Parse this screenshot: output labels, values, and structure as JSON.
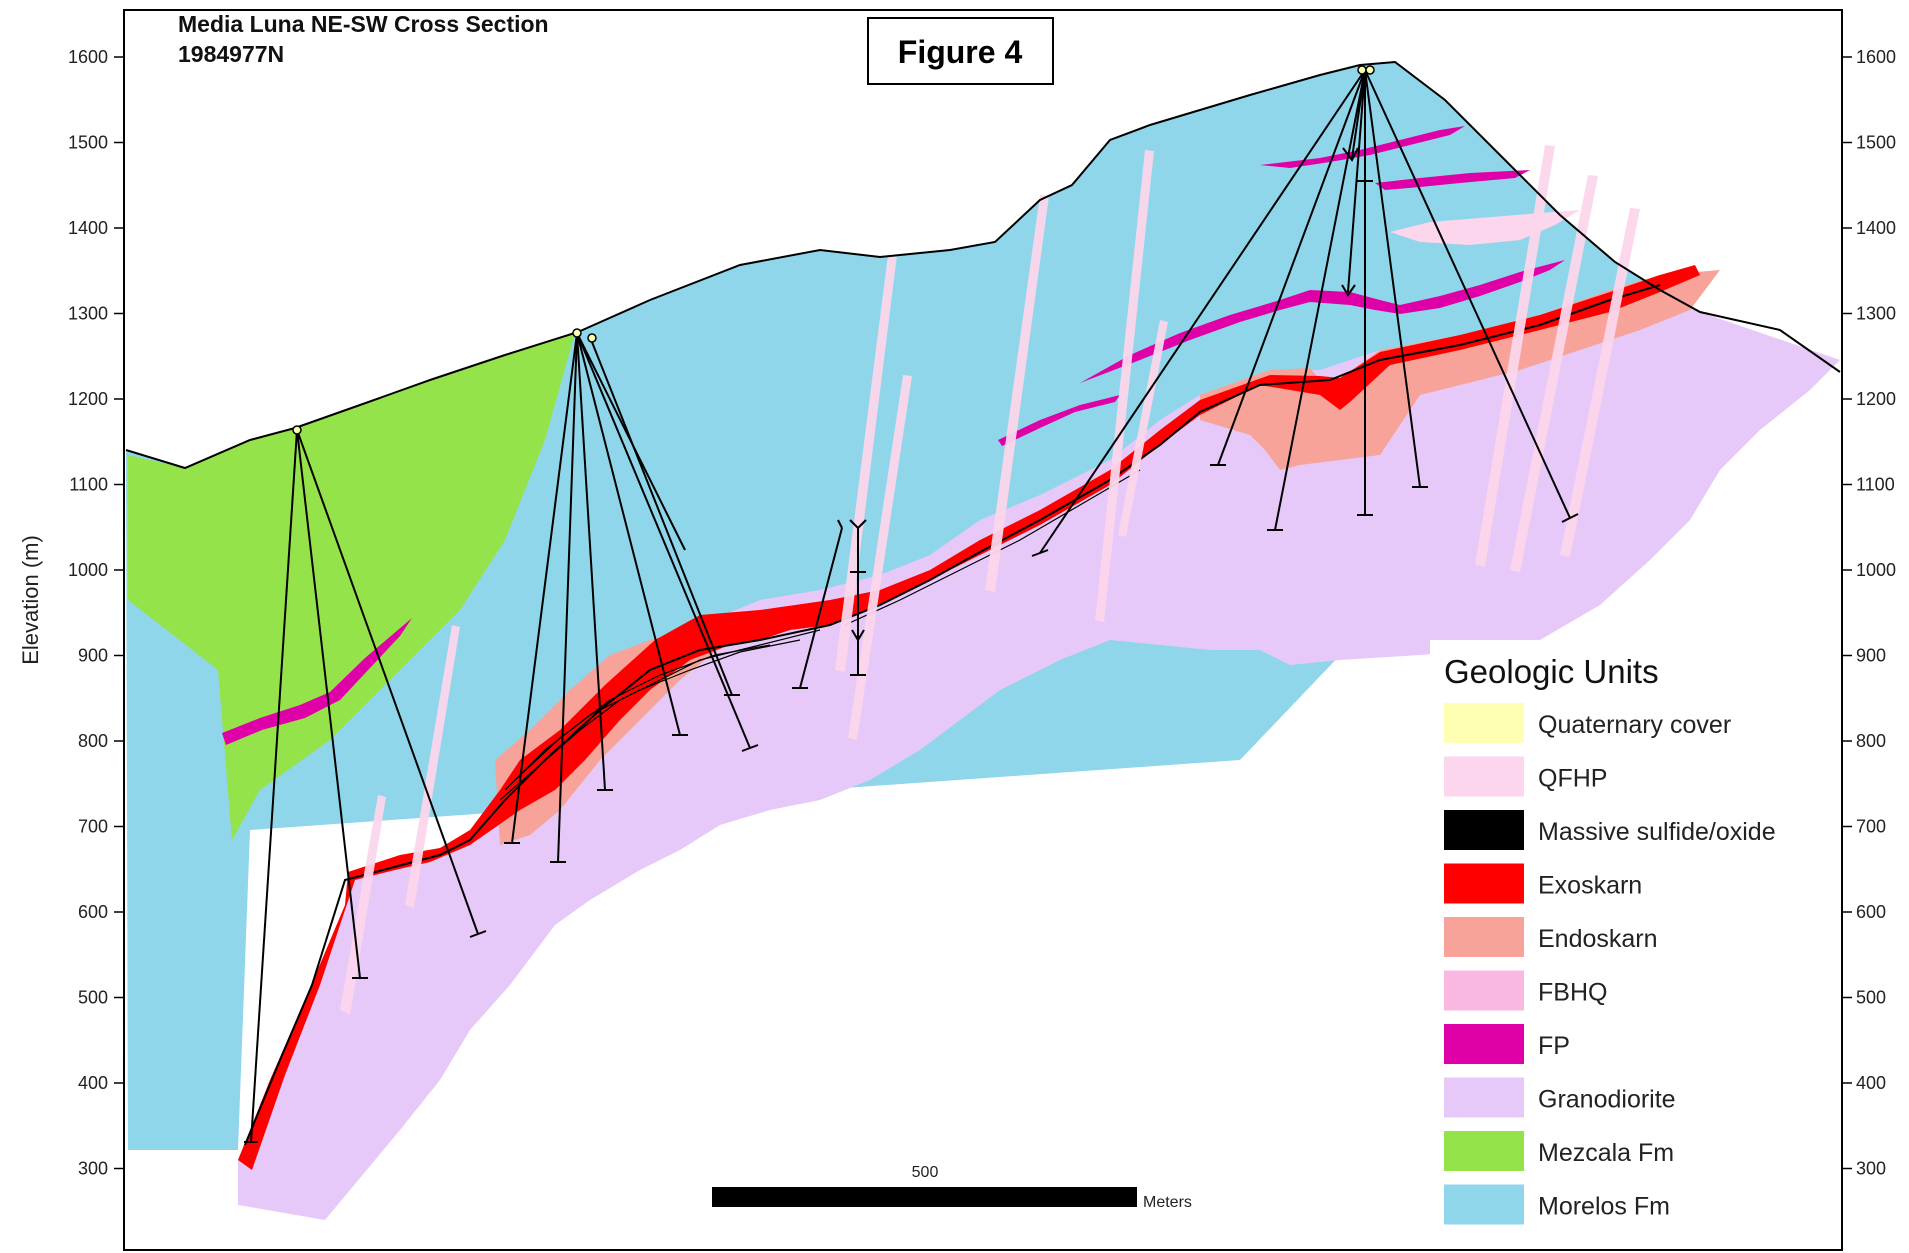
{
  "title": {
    "line1": "Media Luna NE-SW Cross Section",
    "line2": "1984977N"
  },
  "figure_label": "Figure 4",
  "y_axis": {
    "label": "Elevation (m)",
    "ticks": [
      1600,
      1500,
      1400,
      1300,
      1200,
      1100,
      1000,
      900,
      800,
      700,
      600,
      500,
      400,
      300
    ]
  },
  "scale_bar": {
    "value": "500",
    "unit": "Meters"
  },
  "legend": {
    "title": "Geologic Units",
    "items": [
      {
        "label": "Quaternary cover",
        "color": "#ffffb3"
      },
      {
        "label": "QFHP",
        "color": "#fcd6ec"
      },
      {
        "label": "Massive sulfide/oxide",
        "color": "#000000"
      },
      {
        "label": "Exoskarn",
        "color": "#ff0000"
      },
      {
        "label": "Endoskarn",
        "color": "#f7a39a"
      },
      {
        "label": "FBHQ",
        "color": "#f9b8e2"
      },
      {
        "label": "FP",
        "color": "#e000a8"
      },
      {
        "label": "Granodiorite",
        "color": "#e6c9f8"
      },
      {
        "label": "Mezcala Fm",
        "color": "#95e34a"
      },
      {
        "label": "Morelos Fm",
        "color": "#8fd6ea"
      }
    ]
  },
  "colors": {
    "morelos": "#8fd6ea",
    "mezcala": "#95e34a",
    "granodiorite": "#e6c9f8",
    "exoskarn": "#ff0000",
    "endoskarn": "#f7a39a",
    "fp": "#e000a8",
    "qfhp": "#fcd6ec",
    "fbhq": "#f9b8e2",
    "sulfide": "#000000",
    "quaternary": "#ffffb3"
  }
}
